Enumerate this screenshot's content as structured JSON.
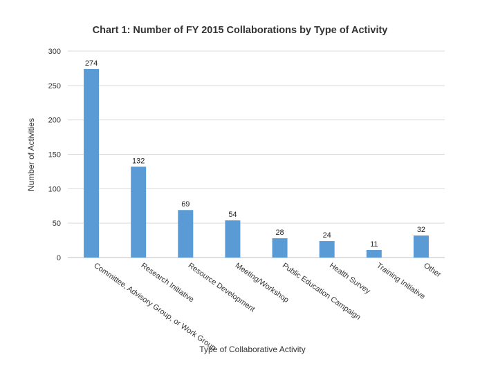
{
  "chart_data": {
    "type": "bar",
    "title": "Chart 1: Number of FY 2015 Collaborations by Type of Activity",
    "xlabel": "Type of Collaborative Activity",
    "ylabel": "Number of Activities",
    "categories": [
      "Committee, Advisory Group, or Work Group",
      "Research Initiative",
      "Resource Development",
      "Meeting/Workshop",
      "Public Education Campaign",
      "Health Survey",
      "Training Initiative",
      "Other"
    ],
    "values": [
      274,
      132,
      69,
      54,
      28,
      24,
      11,
      32
    ],
    "data_labels": [
      "274",
      "132",
      "69",
      "54",
      "28",
      "24",
      "11",
      "32"
    ],
    "ylim": [
      0,
      300
    ],
    "yticks": [
      0,
      50,
      100,
      150,
      200,
      250,
      300
    ],
    "ytick_labels": [
      "0",
      "50",
      "100",
      "150",
      "200",
      "250",
      "300"
    ],
    "grid": true,
    "legend": "none",
    "bar_color": "#5b9bd5"
  }
}
